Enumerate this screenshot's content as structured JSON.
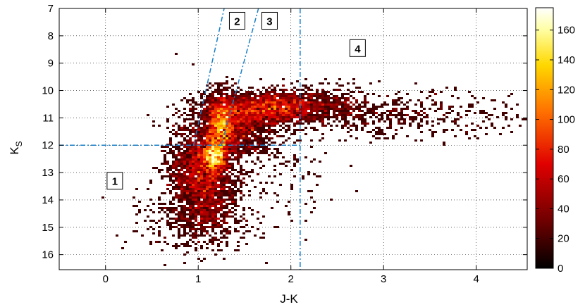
{
  "chart_data": {
    "type": "heatmap",
    "xlabel": "J-K",
    "ylabel_main": "K",
    "ylabel_sub": "S",
    "xlim": [
      -0.5,
      4.55
    ],
    "ylim": [
      16.55,
      7.0
    ],
    "y_inverted": true,
    "grid": true,
    "xticks": [
      0,
      1,
      2,
      3,
      4
    ],
    "yticks": [
      7,
      8,
      9,
      10,
      11,
      12,
      13,
      14,
      15,
      16
    ],
    "colorbar": {
      "min": 0,
      "max": 175,
      "ticks": [
        0,
        20,
        40,
        60,
        80,
        100,
        120,
        140,
        160
      ],
      "colormap": "hot (black-red-yellow-white)",
      "colors": [
        "#000000",
        "#7a0000",
        "#e00000",
        "#ff6a00",
        "#ffd400",
        "#ffffb0",
        "#ffffff"
      ]
    },
    "density_components": [
      {
        "cx": 1.05,
        "cy": 13.1,
        "sx": 0.18,
        "sy": 1.05,
        "n": 2600,
        "rot": 0.0
      },
      {
        "cx": 1.17,
        "cy": 12.4,
        "sx": 0.07,
        "sy": 0.28,
        "n": 900,
        "rot": 0.0
      },
      {
        "cx": 1.25,
        "cy": 11.25,
        "sx": 0.08,
        "sy": 0.55,
        "n": 1300,
        "rot": 0.0
      },
      {
        "cx": 1.45,
        "cy": 11.45,
        "sx": 0.22,
        "sy": 0.55,
        "n": 900,
        "rot": 0.0
      },
      {
        "cx": 1.7,
        "cy": 10.65,
        "sx": 0.3,
        "sy": 0.3,
        "n": 1500,
        "rot": -0.35
      },
      {
        "cx": 2.2,
        "cy": 10.55,
        "sx": 0.35,
        "sy": 0.32,
        "n": 700,
        "rot": -0.1
      },
      {
        "cx": 3.1,
        "cy": 10.85,
        "sx": 0.75,
        "sy": 0.45,
        "n": 520,
        "rot": 0.0
      },
      {
        "cx": 1.0,
        "cy": 14.9,
        "sx": 0.35,
        "sy": 0.5,
        "n": 260,
        "rot": 0.0
      },
      {
        "cx": 1.75,
        "cy": 13.2,
        "sx": 0.35,
        "sy": 1.0,
        "n": 150,
        "rot": 0.0
      }
    ],
    "cut_lines": [
      {
        "name": "horizontal Ks=12 cut",
        "points": [
          [
            -0.5,
            12.0
          ],
          [
            2.1,
            12.0
          ]
        ]
      },
      {
        "name": "vertical J-K=2.1 cut",
        "points": [
          [
            2.1,
            7.0
          ],
          [
            2.1,
            16.55
          ]
        ]
      },
      {
        "name": "left slanted boundary",
        "points": [
          [
            0.95,
            12.0
          ],
          [
            1.28,
            7.0
          ]
        ]
      },
      {
        "name": "right slanted boundary",
        "points": [
          [
            1.25,
            12.0
          ],
          [
            1.65,
            7.0
          ]
        ]
      }
    ],
    "region_labels": [
      {
        "text": "1",
        "x": 0.1,
        "y": 13.3
      },
      {
        "text": "2",
        "x": 1.42,
        "y": 7.45
      },
      {
        "text": "3",
        "x": 1.77,
        "y": 7.45
      },
      {
        "text": "4",
        "x": 2.72,
        "y": 8.45
      }
    ]
  }
}
